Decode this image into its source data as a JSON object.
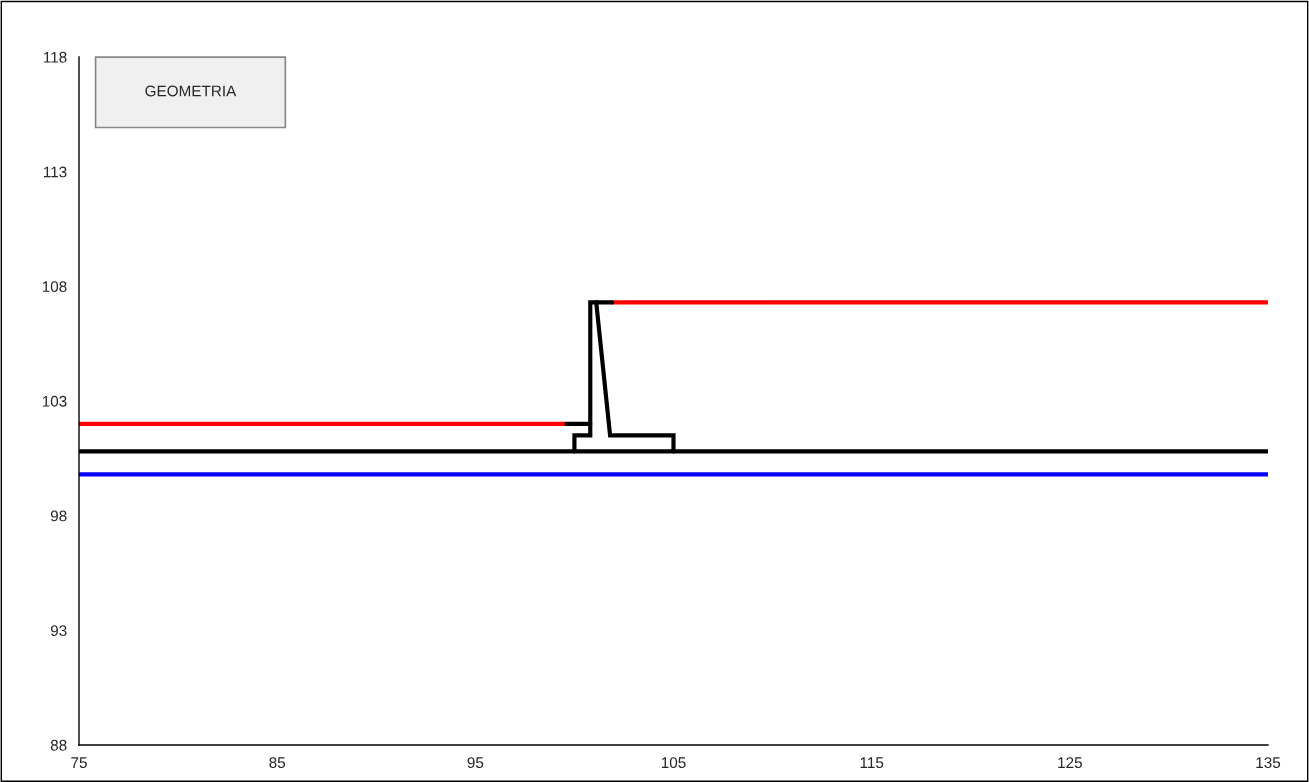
{
  "chart_data": {
    "type": "line",
    "xlim": [
      75,
      135
    ],
    "ylim": [
      88,
      118
    ],
    "xticks": [
      75,
      85,
      95,
      105,
      115,
      125,
      135
    ],
    "yticks": [
      88,
      93,
      98,
      103,
      108,
      113,
      118
    ],
    "grid": false,
    "marker": "none",
    "line_style": "solid",
    "annotations": [
      "GEOMETRIA"
    ],
    "series": [
      {
        "color": "#0000ff",
        "x": [
          75,
          135
        ],
        "values": [
          99.8,
          99.8
        ]
      },
      {
        "color": "#000000",
        "x": [
          75,
          135
        ],
        "values": [
          100.8,
          100.8
        ]
      },
      {
        "color": "#ff0000",
        "x": [
          75,
          99.6
        ],
        "values": [
          102,
          102
        ]
      },
      {
        "color": "#000000",
        "x": [
          99.6,
          100.8
        ],
        "values": [
          102,
          102
        ]
      },
      {
        "color": "#ff0000",
        "x": [
          101.9,
          135
        ],
        "values": [
          107.3,
          107.3
        ]
      },
      {
        "color": "#000000",
        "x": [
          101.1,
          101.9
        ],
        "values": [
          107.3,
          107.3
        ]
      },
      {
        "color": "#000000",
        "x": [
          100,
          100,
          100.8,
          100.8,
          101.1,
          101.8,
          105,
          105
        ],
        "values": [
          100.8,
          101.5,
          101.5,
          107.3,
          107.3,
          101.5,
          101.5,
          100.8
        ]
      }
    ]
  }
}
